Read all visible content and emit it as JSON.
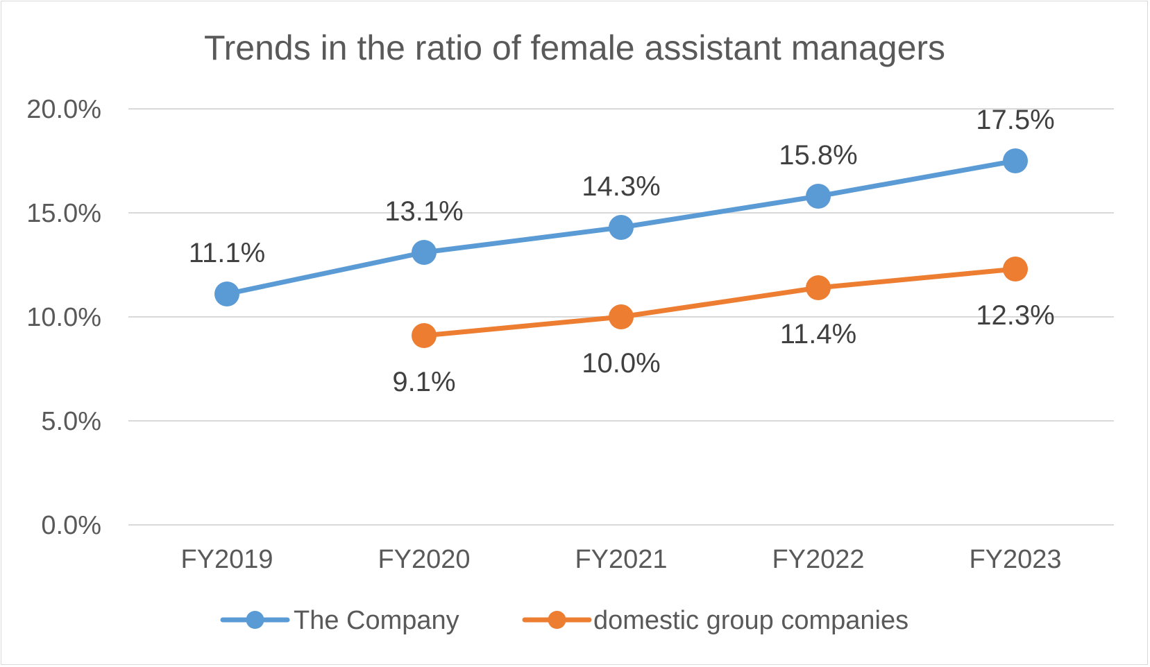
{
  "chart_data": {
    "type": "line",
    "title": "Trends in the ratio of female assistant managers",
    "xlabel": "",
    "ylabel": "",
    "categories": [
      "FY2019",
      "FY2020",
      "FY2021",
      "FY2022",
      "FY2023"
    ],
    "ylim": [
      0,
      20
    ],
    "y_ticks": [
      0,
      5,
      10,
      15,
      20
    ],
    "y_tick_labels": [
      "0.0%",
      "5.0%",
      "10.0%",
      "15.0%",
      "20.0%"
    ],
    "grid": true,
    "legend_position": "bottom",
    "series": [
      {
        "name": "The Company",
        "color": "#5b9bd5",
        "values": [
          11.1,
          13.1,
          14.3,
          15.8,
          17.5
        ],
        "labels": [
          "11.1%",
          "13.1%",
          "14.3%",
          "15.8%",
          "17.5%"
        ],
        "label_position": "above"
      },
      {
        "name": "domestic group companies",
        "color": "#ed7d31",
        "values": [
          null,
          9.1,
          10.0,
          11.4,
          12.3
        ],
        "labels": [
          null,
          "9.1%",
          "10.0%",
          "11.4%",
          "12.3%"
        ],
        "label_position": "below"
      }
    ]
  }
}
